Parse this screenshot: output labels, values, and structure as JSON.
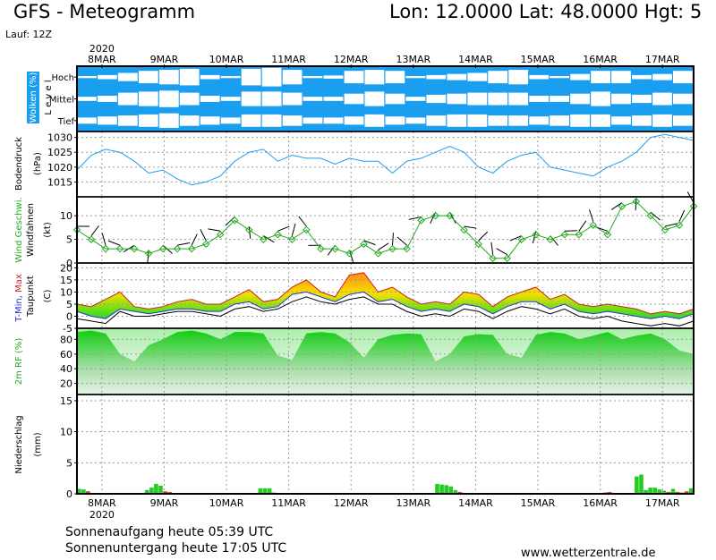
{
  "header": {
    "title": "GFS - Meteogramm",
    "location": "Lon: 12.0000 Lat: 48.0000 Hgt: 5",
    "run": "Lauf: 12Z"
  },
  "footer": {
    "sunrise": "Sonnenaufgang heute 05:39 UTC",
    "sunset": "Sonnenuntergang heute 17:05 UTC",
    "site": "www.wetterzentrale.de"
  },
  "colors": {
    "cloud_blue": "#1a9eef",
    "pressure": "#1a9eef",
    "wind_speed": "#22aa22",
    "rh_green": "#22dd22",
    "precip": "#22cc22"
  },
  "chart_data": {
    "type": "meteogram",
    "year_label": "2020",
    "days": [
      "8MAR",
      "9MAR",
      "10MAR",
      "11MAR",
      "12MAR",
      "13MAR",
      "14MAR",
      "15MAR",
      "16MAR",
      "17MAR"
    ],
    "x_start_day": 7.6,
    "x_end_day": 17.5,
    "panels": {
      "clouds": {
        "ylabel": "Wolken (%)",
        "ylabel2": "L e v e l",
        "levels": [
          "Hoch",
          "Mittel",
          "Tief"
        ],
        "coverage_high": [
          90,
          80,
          60,
          40,
          30,
          20,
          80,
          90,
          20,
          10,
          30,
          90,
          85,
          40,
          30,
          40,
          90,
          80,
          70,
          60,
          40,
          30,
          80,
          90,
          70,
          40,
          40,
          80,
          70,
          40
        ],
        "coverage_mid": [
          80,
          70,
          40,
          30,
          20,
          40,
          70,
          80,
          30,
          30,
          40,
          80,
          80,
          50,
          30,
          50,
          80,
          60,
          50,
          40,
          40,
          40,
          70,
          70,
          50,
          30,
          50,
          60,
          40,
          50
        ],
        "coverage_low": [
          70,
          60,
          50,
          40,
          30,
          50,
          60,
          70,
          40,
          40,
          50,
          70,
          70,
          60,
          40,
          60,
          70,
          50,
          40,
          40,
          50,
          50,
          60,
          50,
          40,
          40,
          60,
          50,
          40,
          50
        ]
      },
      "pressure": {
        "ylabel": "Bodendruck",
        "unit": "(hPa)",
        "ylim": [
          1010,
          1032
        ],
        "ticks": [
          1015,
          1020,
          1025,
          1030
        ],
        "values": [
          1019,
          1024,
          1026,
          1025,
          1022,
          1018,
          1019,
          1016,
          1014,
          1015,
          1017,
          1022,
          1025,
          1026,
          1022,
          1024,
          1023,
          1023,
          1021,
          1023,
          1022,
          1022,
          1018,
          1022,
          1023,
          1025,
          1027,
          1025,
          1020,
          1018,
          1022,
          1024,
          1025,
          1020,
          1019,
          1018,
          1017,
          1020,
          1022,
          1025,
          1030,
          1031,
          1030,
          1029
        ]
      },
      "wind": {
        "ylabel": "Wind Geschwi.",
        "ylabel2": "Windfahnen",
        "unit": "(kt)",
        "ylim": [
          0,
          14
        ],
        "ticks": [
          0,
          5,
          10
        ],
        "values": [
          7,
          5,
          3,
          3,
          3,
          2,
          3,
          3,
          3,
          4,
          6,
          9,
          7,
          5,
          6,
          5,
          7,
          3,
          3,
          2,
          4,
          2,
          3,
          3,
          9,
          10,
          10,
          7,
          4,
          1,
          1,
          5,
          6,
          5,
          6,
          6,
          8,
          6,
          12,
          13,
          10,
          7,
          8,
          12
        ]
      },
      "temperature": {
        "ylabel": "T-Min, Max",
        "ylabel2": "Taupunkt",
        "unit": "(C)",
        "ylim": [
          -5,
          22
        ],
        "ticks": [
          -5,
          0,
          5,
          10,
          15,
          20
        ],
        "tmax": [
          5,
          4,
          7,
          10,
          4,
          3,
          4,
          6,
          7,
          5,
          5,
          8,
          11,
          6,
          7,
          12,
          15,
          10,
          8,
          17,
          18,
          10,
          12,
          8,
          5,
          6,
          5,
          10,
          9,
          4,
          8,
          10,
          12,
          7,
          9,
          5,
          4,
          5,
          4,
          3,
          1,
          2,
          1,
          3
        ],
        "tmin": [
          2,
          0,
          -1,
          3,
          2,
          1,
          2,
          3,
          3,
          2,
          2,
          5,
          6,
          3,
          4,
          9,
          10,
          8,
          6,
          9,
          10,
          6,
          7,
          4,
          2,
          3,
          2,
          5,
          4,
          1,
          4,
          6,
          6,
          3,
          5,
          2,
          1,
          2,
          1,
          0,
          -1,
          0,
          -1,
          1
        ],
        "dewpoint": [
          -1,
          -2,
          -3,
          2,
          0,
          0,
          1,
          2,
          2,
          1,
          0,
          3,
          4,
          2,
          3,
          6,
          8,
          6,
          5,
          7,
          8,
          5,
          5,
          2,
          0,
          1,
          0,
          3,
          2,
          -1,
          2,
          4,
          3,
          1,
          3,
          0,
          -1,
          0,
          -2,
          -3,
          -4,
          -3,
          -4,
          -2
        ]
      },
      "humidity": {
        "ylabel": "2m RF (%)",
        "ylim": [
          5,
          95
        ],
        "ticks": [
          20,
          40,
          60,
          80
        ],
        "values": [
          90,
          92,
          88,
          60,
          50,
          72,
          80,
          90,
          92,
          88,
          80,
          90,
          90,
          88,
          58,
          52,
          88,
          90,
          88,
          76,
          55,
          80,
          86,
          88,
          87,
          50,
          60,
          84,
          87,
          86,
          60,
          55,
          86,
          90,
          88,
          80,
          85,
          90,
          80,
          85,
          88,
          80,
          65,
          60
        ]
      },
      "precip": {
        "ylabel": "Niederschlag",
        "unit": "(mm)",
        "ylim": [
          0,
          16
        ],
        "ticks": [
          0,
          5,
          10,
          15
        ],
        "values": [
          0.8,
          0.7,
          0.4,
          0,
          0,
          0,
          0,
          0,
          0,
          0,
          0,
          0,
          0,
          0,
          0.1,
          0.6,
          1.0,
          1.6,
          1.3,
          0.4,
          0.3,
          0.1,
          0,
          0,
          0,
          0,
          0,
          0,
          0,
          0,
          0,
          0,
          0,
          0,
          0,
          0,
          0,
          0,
          0,
          0,
          0.9,
          0.9,
          0.9,
          0.2,
          0,
          0,
          0,
          0,
          0,
          0,
          0,
          0,
          0,
          0,
          0,
          0,
          0,
          0,
          0,
          0,
          0,
          0,
          0,
          0,
          0,
          0,
          0,
          0,
          0,
          0,
          0,
          0,
          0,
          0,
          0,
          0,
          0,
          0,
          0,
          1.6,
          1.5,
          1.4,
          1.2,
          0.6,
          0.3,
          0,
          0,
          0,
          0,
          0,
          0,
          0,
          0,
          0,
          0,
          0,
          0,
          0,
          0,
          0,
          0,
          0,
          0,
          0,
          0,
          0,
          0,
          0,
          0,
          0,
          0,
          0,
          0,
          0,
          0,
          0,
          0.2,
          0.3,
          0,
          0,
          0,
          0,
          0,
          2.8,
          3.1,
          0.6,
          1.0,
          1.0,
          0.7,
          0.5,
          0.3,
          0.8,
          0.3,
          0.2,
          0.4,
          0.9
        ]
      }
    }
  }
}
